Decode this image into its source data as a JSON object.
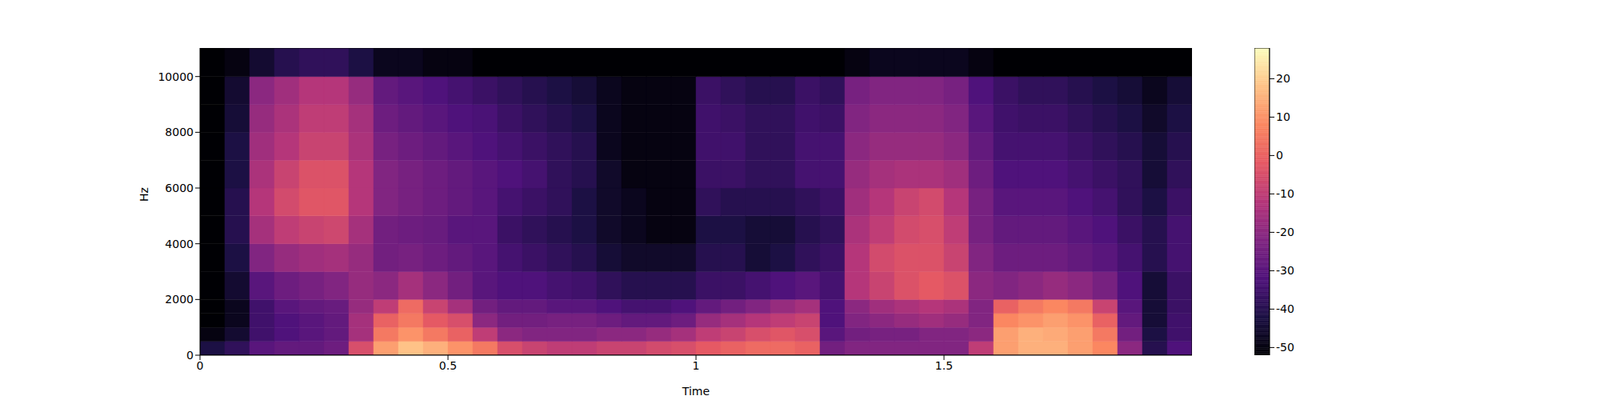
{
  "chart_data": {
    "type": "heatmap",
    "xlabel": "Time",
    "ylabel": "Hz",
    "x_edges": [
      0,
      0.05,
      0.1,
      0.15,
      0.2,
      0.25,
      0.3,
      0.35,
      0.4,
      0.45,
      0.5,
      0.55,
      0.6,
      0.65,
      0.7,
      0.75,
      0.8,
      0.85,
      0.9,
      0.95,
      1,
      1.05,
      1.1,
      1.15,
      1.2,
      1.25,
      1.3,
      1.35,
      1.4,
      1.45,
      1.5,
      1.55,
      1.6,
      1.65,
      1.7,
      1.75,
      1.8,
      1.85,
      1.9,
      1.95,
      2
    ],
    "y_edges": [
      0,
      500,
      1000,
      1500,
      2000,
      3000,
      4000,
      5000,
      6000,
      7000,
      8000,
      9000,
      10000,
      11025
    ],
    "values": [
      [
        -42,
        -50,
        -52,
        -52,
        -52,
        -52,
        -52,
        -52,
        -52,
        -52,
        -52,
        -52,
        -52
      ],
      [
        -38,
        -45,
        -48,
        -48,
        -45,
        -42,
        -40,
        -40,
        -42,
        -42,
        -44,
        -45,
        -50
      ],
      [
        -30,
        -35,
        -35,
        -35,
        -30,
        -22,
        -15,
        -12,
        -14,
        -16,
        -18,
        -20,
        -45
      ],
      [
        -28,
        -32,
        -32,
        -30,
        -26,
        -18,
        -10,
        -6,
        -8,
        -12,
        -14,
        -16,
        -40
      ],
      [
        -28,
        -30,
        -30,
        -28,
        -24,
        -16,
        -8,
        -3,
        -4,
        -8,
        -10,
        -12,
        -38
      ],
      [
        -26,
        -28,
        -28,
        -27,
        -22,
        -15,
        -7,
        -3,
        -4,
        -8,
        -10,
        -12,
        -38
      ],
      [
        -5,
        -15,
        -15,
        -18,
        -18,
        -18,
        -15,
        -12,
        -12,
        -14,
        -15,
        -18,
        -42
      ],
      [
        12,
        5,
        0,
        -10,
        -20,
        -25,
        -25,
        -22,
        -22,
        -24,
        -26,
        -28,
        -48
      ],
      [
        18,
        10,
        5,
        2,
        -15,
        -24,
        -26,
        -24,
        -24,
        -26,
        -28,
        -30,
        -48
      ],
      [
        15,
        5,
        -2,
        -8,
        -20,
        -26,
        -27,
        -26,
        -26,
        -28,
        -30,
        -32,
        -50
      ],
      [
        10,
        0,
        -5,
        -15,
        -25,
        -28,
        -30,
        -28,
        -28,
        -30,
        -32,
        -34,
        -50
      ],
      [
        5,
        -10,
        -20,
        -25,
        -30,
        -30,
        -30,
        -30,
        -30,
        -32,
        -33,
        -36,
        -52
      ],
      [
        -5,
        -20,
        -25,
        -28,
        -32,
        -34,
        -36,
        -34,
        -32,
        -34,
        -36,
        -38,
        -52
      ],
      [
        -8,
        -22,
        -25,
        -28,
        -32,
        -36,
        -38,
        -36,
        -34,
        -36,
        -38,
        -40,
        -52
      ],
      [
        -10,
        -22,
        -24,
        -30,
        -34,
        -38,
        -40,
        -38,
        -38,
        -38,
        -40,
        -42,
        -52
      ],
      [
        -10,
        -22,
        -24,
        -30,
        -35,
        -40,
        -42,
        -42,
        -40,
        -40,
        -42,
        -44,
        -52
      ],
      [
        -8,
        -20,
        -26,
        -32,
        -38,
        -44,
        -46,
        -46,
        -46,
        -48,
        -48,
        -48,
        -52
      ],
      [
        -8,
        -20,
        -28,
        -34,
        -40,
        -46,
        -48,
        -48,
        -50,
        -50,
        -50,
        -50,
        -52
      ],
      [
        -6,
        -18,
        -28,
        -34,
        -40,
        -46,
        -50,
        -50,
        -50,
        -50,
        -50,
        -50,
        -52
      ],
      [
        -5,
        -15,
        -26,
        -32,
        -40,
        -46,
        -50,
        -50,
        -50,
        -50,
        -50,
        -50,
        -52
      ],
      [
        -2,
        -10,
        -18,
        -28,
        -36,
        -40,
        -42,
        -38,
        -36,
        -35,
        -35,
        -36,
        -52
      ],
      [
        0,
        -8,
        -15,
        -25,
        -36,
        -40,
        -42,
        -40,
        -36,
        -35,
        -36,
        -38,
        -52
      ],
      [
        2,
        -5,
        -12,
        -22,
        -34,
        -44,
        -44,
        -40,
        -38,
        -38,
        -38,
        -40,
        -52
      ],
      [
        2,
        -3,
        -10,
        -18,
        -32,
        -42,
        -44,
        -40,
        -38,
        -38,
        -38,
        -40,
        -52
      ],
      [
        0,
        -5,
        -8,
        -15,
        -30,
        -38,
        -40,
        -38,
        -34,
        -34,
        -35,
        -36,
        -52
      ],
      [
        -25,
        -30,
        -32,
        -32,
        -34,
        -36,
        -38,
        -36,
        -34,
        -34,
        -36,
        -38,
        -52
      ],
      [
        -22,
        -25,
        -22,
        -20,
        -12,
        -12,
        -14,
        -16,
        -18,
        -20,
        -22,
        -24,
        -50
      ],
      [
        -22,
        -24,
        -20,
        -16,
        -8,
        -6,
        -10,
        -12,
        -15,
        -18,
        -20,
        -22,
        -48
      ],
      [
        -22,
        -24,
        -18,
        -14,
        -4,
        -4,
        -6,
        -8,
        -14,
        -18,
        -20,
        -22,
        -48
      ],
      [
        -22,
        -22,
        -16,
        -12,
        -2,
        -4,
        -5,
        -6,
        -14,
        -18,
        -20,
        -22,
        -48
      ],
      [
        -22,
        -22,
        -18,
        -14,
        -4,
        -8,
        -10,
        -12,
        -16,
        -20,
        -22,
        -24,
        -48
      ],
      [
        -10,
        -20,
        -22,
        -22,
        -20,
        -22,
        -24,
        -24,
        -26,
        -28,
        -30,
        -32,
        -50
      ],
      [
        12,
        12,
        8,
        0,
        -22,
        -26,
        -28,
        -30,
        -32,
        -34,
        -35,
        -36,
        -52
      ],
      [
        15,
        15,
        10,
        5,
        -20,
        -26,
        -28,
        -30,
        -32,
        -34,
        -36,
        -38,
        -52
      ],
      [
        15,
        14,
        12,
        8,
        -18,
        -26,
        -28,
        -30,
        -32,
        -34,
        -36,
        -38,
        -52
      ],
      [
        12,
        12,
        10,
        5,
        -20,
        -28,
        -30,
        -32,
        -34,
        -36,
        -38,
        -40,
        -52
      ],
      [
        8,
        5,
        0,
        -8,
        -24,
        -30,
        -32,
        -34,
        -36,
        -38,
        -40,
        -42,
        -52
      ],
      [
        -20,
        -25,
        -28,
        -30,
        -32,
        -34,
        -36,
        -38,
        -38,
        -40,
        -42,
        -44,
        -52
      ],
      [
        -40,
        -42,
        -44,
        -44,
        -44,
        -40,
        -40,
        -42,
        -44,
        -44,
        -46,
        -48,
        -52
      ],
      [
        -32,
        -35,
        -35,
        -36,
        -36,
        -34,
        -34,
        -36,
        -38,
        -40,
        -42,
        -44,
        -52
      ]
    ],
    "xlim": [
      0,
      2
    ],
    "ylim": [
      0,
      11025
    ],
    "xticks": [
      0,
      0.5,
      1,
      1.5
    ],
    "yticks": [
      0,
      2000,
      4000,
      6000,
      8000,
      10000
    ],
    "colorbar": {
      "range": [
        -52,
        28
      ],
      "ticks": [
        -50,
        -40,
        -30,
        -20,
        -10,
        0,
        10,
        20
      ]
    }
  }
}
